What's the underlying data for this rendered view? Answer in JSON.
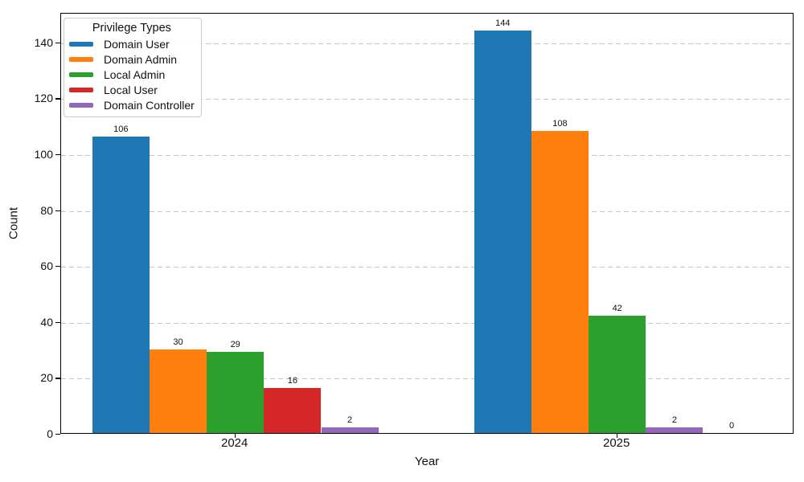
{
  "chart_data": {
    "type": "bar",
    "title": "",
    "xlabel": "Year",
    "ylabel": "Count",
    "categories": [
      "2024",
      "2025"
    ],
    "series": [
      {
        "name": "Domain User",
        "color": "#1f77b4",
        "values": [
          106,
          144
        ]
      },
      {
        "name": "Domain Admin",
        "color": "#ff7f0e",
        "values": [
          30,
          108
        ]
      },
      {
        "name": "Local Admin",
        "color": "#2ca02c",
        "values": [
          29,
          42
        ]
      },
      {
        "name": "Local User",
        "color": "#d62728",
        "values": [
          16,
          0
        ]
      },
      {
        "name": "Domain Controller",
        "color": "#9467bd",
        "values": [
          2,
          2
        ]
      }
    ],
    "legend": {
      "title": "Privilege Types",
      "position": "upper left"
    },
    "ylim": [
      0,
      150.6
    ],
    "yticks": [
      0,
      20,
      40,
      60,
      80,
      100,
      120,
      140
    ],
    "grid": "y-dashed",
    "bar_value_labels": true,
    "bars_sorted_descending_within_group": true
  }
}
